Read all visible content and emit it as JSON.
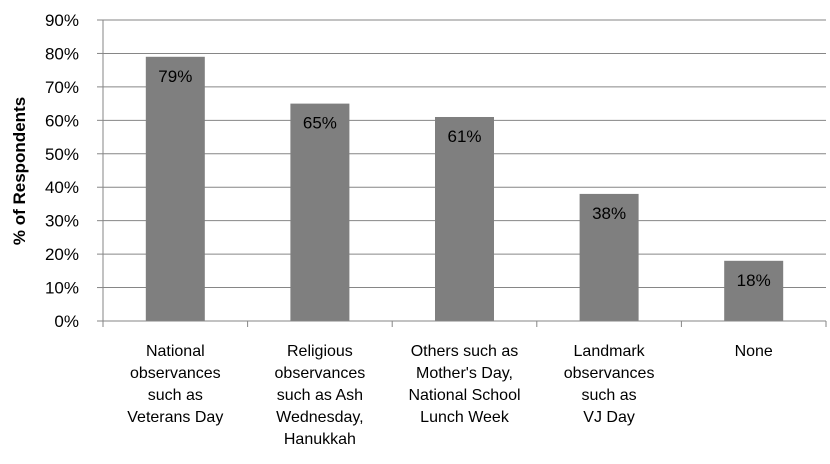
{
  "chart_data": {
    "type": "bar",
    "categories": [
      [
        "National",
        "observances",
        "such as",
        "Veterans Day"
      ],
      [
        "Religious",
        "observances",
        "such as Ash",
        "Wednesday,",
        "Hanukkah"
      ],
      [
        "Others such as",
        "Mother's Day,",
        "National School",
        "Lunch Week"
      ],
      [
        "Landmark",
        "observances",
        "such as",
        "VJ Day"
      ],
      [
        "None"
      ]
    ],
    "values": [
      79,
      65,
      61,
      38,
      18
    ],
    "data_labels": [
      "79%",
      "65%",
      "61%",
      "38%",
      "18%"
    ],
    "ylabel": "% of Respondents",
    "ylim": [
      0,
      90
    ],
    "yticks": [
      0,
      10,
      20,
      30,
      40,
      50,
      60,
      70,
      80,
      90
    ],
    "ytick_labels": [
      "0%",
      "10%",
      "20%",
      "30%",
      "40%",
      "50%",
      "60%",
      "70%",
      "80%",
      "90%"
    ],
    "grid": true,
    "bar_color": "#7f7f7f",
    "grid_color": "#868686"
  }
}
